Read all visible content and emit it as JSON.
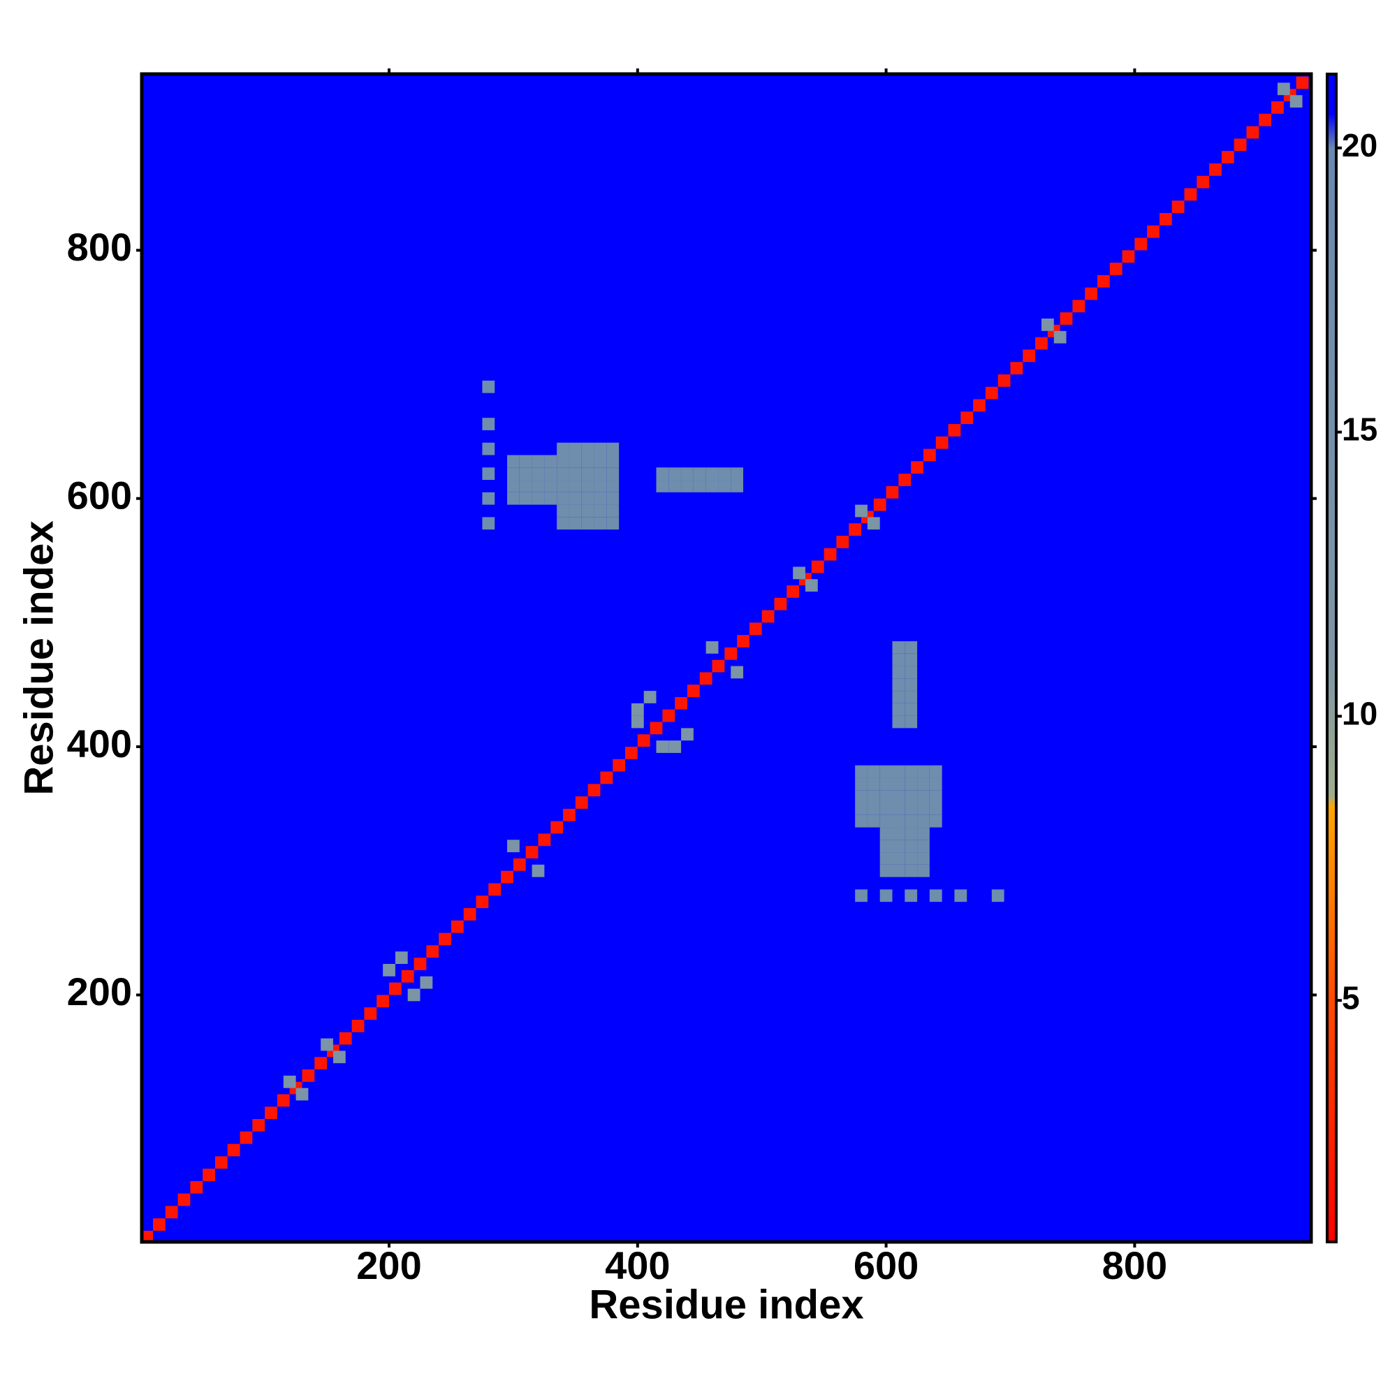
{
  "chart_data": {
    "type": "heatmap",
    "xlabel": "Residue index",
    "ylabel": "Residue index",
    "xlim": [
      1,
      942
    ],
    "ylim": [
      1,
      942
    ],
    "xticks": [
      200,
      400,
      600,
      800
    ],
    "yticks": [
      200,
      400,
      600,
      800
    ],
    "zlim": [
      0.75,
      21.3
    ],
    "zticks": [
      5,
      10,
      15,
      20
    ],
    "colorscale": [
      [
        0.75,
        "#ff0000"
      ],
      [
        5,
        "#ff4a00"
      ],
      [
        8.4,
        "#ffa500"
      ],
      [
        8.6,
        "#9fae8a"
      ],
      [
        11,
        "#7d95a5"
      ],
      [
        20,
        "#6889b0"
      ],
      [
        20.6,
        "#0000ff"
      ]
    ],
    "x": [
      5,
      15,
      25,
      35,
      45,
      55,
      65,
      75,
      85,
      95,
      105,
      115,
      125,
      135,
      145,
      155,
      165,
      175,
      185,
      195,
      205,
      215,
      225,
      235,
      245,
      255,
      265,
      275,
      285,
      295,
      305,
      315,
      325,
      335,
      345,
      355,
      365,
      375,
      385,
      395,
      405,
      415,
      425,
      435,
      445,
      455,
      465,
      475,
      485,
      495,
      505,
      515,
      525,
      535,
      545,
      555,
      565,
      575,
      585,
      595,
      605,
      615,
      625,
      635,
      645,
      655,
      665,
      675,
      685,
      695,
      705,
      715,
      725,
      735,
      745,
      755,
      765,
      775,
      785,
      795,
      805,
      815,
      825,
      835,
      845,
      855,
      865,
      875,
      885,
      895,
      905,
      915,
      925,
      935,
      120,
      130,
      150,
      160,
      200,
      220,
      210,
      230,
      300,
      320,
      400,
      430,
      410,
      440,
      420,
      400,
      460,
      480,
      530,
      540,
      580,
      590,
      730,
      740,
      920,
      930,
      340,
      340,
      340,
      340,
      340,
      340,
      340,
      350,
      350,
      350,
      350,
      350,
      350,
      350,
      360,
      360,
      360,
      360,
      360,
      360,
      360,
      370,
      370,
      370,
      370,
      370,
      370,
      370,
      380,
      380,
      380,
      380,
      380,
      380,
      380,
      300,
      300,
      300,
      300,
      310,
      310,
      310,
      310,
      320,
      320,
      320,
      320,
      330,
      330,
      330,
      330,
      420,
      420,
      430,
      430,
      440,
      440,
      450,
      450,
      460,
      460,
      470,
      470,
      480,
      480,
      280,
      280,
      280,
      280,
      280,
      280,
      580,
      590,
      600,
      610,
      620,
      630,
      640,
      580,
      590,
      600,
      610,
      620,
      630,
      640,
      580,
      590,
      600,
      610,
      620,
      630,
      640,
      580,
      590,
      600,
      610,
      620,
      630,
      640,
      580,
      590,
      600,
      610,
      620,
      630,
      640,
      600,
      610,
      620,
      630,
      600,
      610,
      620,
      630,
      600,
      610,
      620,
      630,
      600,
      610,
      620,
      630,
      610,
      620,
      610,
      620,
      610,
      620,
      610,
      620,
      610,
      620,
      610,
      620,
      610,
      620,
      580,
      600,
      620,
      640,
      660,
      690
    ],
    "y": [
      5,
      15,
      25,
      35,
      45,
      55,
      65,
      75,
      85,
      95,
      105,
      115,
      125,
      135,
      145,
      155,
      165,
      175,
      185,
      195,
      205,
      215,
      225,
      235,
      245,
      255,
      265,
      275,
      285,
      295,
      305,
      315,
      325,
      335,
      345,
      355,
      365,
      375,
      385,
      395,
      405,
      415,
      425,
      435,
      445,
      455,
      465,
      475,
      485,
      495,
      505,
      515,
      525,
      535,
      545,
      555,
      565,
      575,
      585,
      595,
      605,
      615,
      625,
      635,
      645,
      655,
      665,
      675,
      685,
      695,
      705,
      715,
      725,
      735,
      745,
      755,
      765,
      775,
      785,
      795,
      805,
      815,
      825,
      835,
      845,
      855,
      865,
      875,
      885,
      895,
      905,
      915,
      925,
      935,
      130,
      120,
      160,
      150,
      220,
      200,
      230,
      210,
      320,
      300,
      430,
      400,
      440,
      410,
      400,
      420,
      480,
      460,
      540,
      530,
      590,
      580,
      740,
      730,
      930,
      920,
      580,
      590,
      600,
      610,
      620,
      630,
      640,
      580,
      590,
      600,
      610,
      620,
      630,
      640,
      580,
      590,
      600,
      610,
      620,
      630,
      640,
      580,
      590,
      600,
      610,
      620,
      630,
      640,
      580,
      590,
      600,
      610,
      620,
      630,
      640,
      600,
      610,
      620,
      630,
      600,
      610,
      620,
      630,
      600,
      610,
      620,
      630,
      600,
      610,
      620,
      630,
      610,
      620,
      610,
      620,
      610,
      620,
      610,
      620,
      610,
      620,
      610,
      620,
      610,
      620,
      580,
      600,
      620,
      640,
      660,
      690,
      340,
      340,
      340,
      340,
      340,
      340,
      340,
      350,
      350,
      350,
      350,
      350,
      350,
      350,
      360,
      360,
      360,
      360,
      360,
      360,
      360,
      370,
      370,
      370,
      370,
      370,
      370,
      370,
      380,
      380,
      380,
      380,
      380,
      380,
      380,
      300,
      300,
      300,
      300,
      310,
      310,
      310,
      310,
      320,
      320,
      320,
      320,
      330,
      330,
      330,
      330,
      420,
      420,
      430,
      430,
      440,
      440,
      450,
      450,
      460,
      460,
      470,
      470,
      480,
      480,
      280,
      280,
      280,
      280,
      280,
      280
    ],
    "values": [
      2,
      2,
      2,
      2,
      2,
      2,
      2,
      2,
      2,
      2,
      2,
      2,
      2,
      2,
      2,
      2,
      2,
      2,
      2,
      2,
      2,
      2,
      2,
      2,
      2,
      2,
      2,
      2,
      2,
      2,
      2,
      2,
      2,
      2,
      2,
      2,
      2,
      2,
      2,
      2,
      2,
      2,
      2,
      2,
      2,
      2,
      2,
      2,
      2,
      2,
      2,
      2,
      2,
      2,
      2,
      2,
      2,
      2,
      2,
      2,
      2,
      2,
      2,
      2,
      2,
      2,
      2,
      2,
      2,
      2,
      2,
      2,
      2,
      2,
      2,
      2,
      2,
      2,
      2,
      2,
      2,
      2,
      2,
      2,
      2,
      2,
      2,
      2,
      2,
      2,
      2,
      2,
      2,
      2,
      12,
      12,
      12,
      12,
      12,
      12,
      12,
      12,
      12,
      12,
      12,
      12,
      12,
      12,
      12,
      12,
      12,
      12,
      12,
      12,
      12,
      12,
      12,
      12,
      12,
      12,
      17,
      17,
      17,
      17,
      17,
      17,
      17,
      17,
      17,
      17,
      17,
      17,
      17,
      17,
      17,
      17,
      17,
      17,
      17,
      17,
      17,
      17,
      17,
      17,
      17,
      17,
      17,
      17,
      17,
      17,
      17,
      17,
      17,
      17,
      17,
      17,
      17,
      17,
      17,
      17,
      17,
      17,
      17,
      17,
      17,
      17,
      17,
      17,
      17,
      17,
      17,
      17,
      17,
      17,
      17,
      17,
      17,
      17,
      17,
      17,
      17,
      17,
      17,
      17,
      17,
      17,
      17,
      17,
      17,
      17,
      17,
      17,
      17,
      17,
      17,
      17,
      17,
      17,
      17,
      17,
      17,
      17,
      17,
      17,
      17,
      17,
      17,
      17,
      17,
      17,
      17,
      17,
      17,
      17,
      17,
      17,
      17,
      17,
      17,
      17,
      17,
      17,
      17,
      17,
      17,
      17,
      17,
      17,
      17,
      17,
      17,
      17,
      17,
      17,
      17,
      17,
      17,
      17,
      17,
      17,
      17,
      17,
      17,
      17,
      17,
      17,
      17,
      17,
      17,
      17,
      17,
      17,
      17,
      17,
      17,
      17,
      17,
      17,
      17,
      17,
      17,
      17
    ]
  }
}
